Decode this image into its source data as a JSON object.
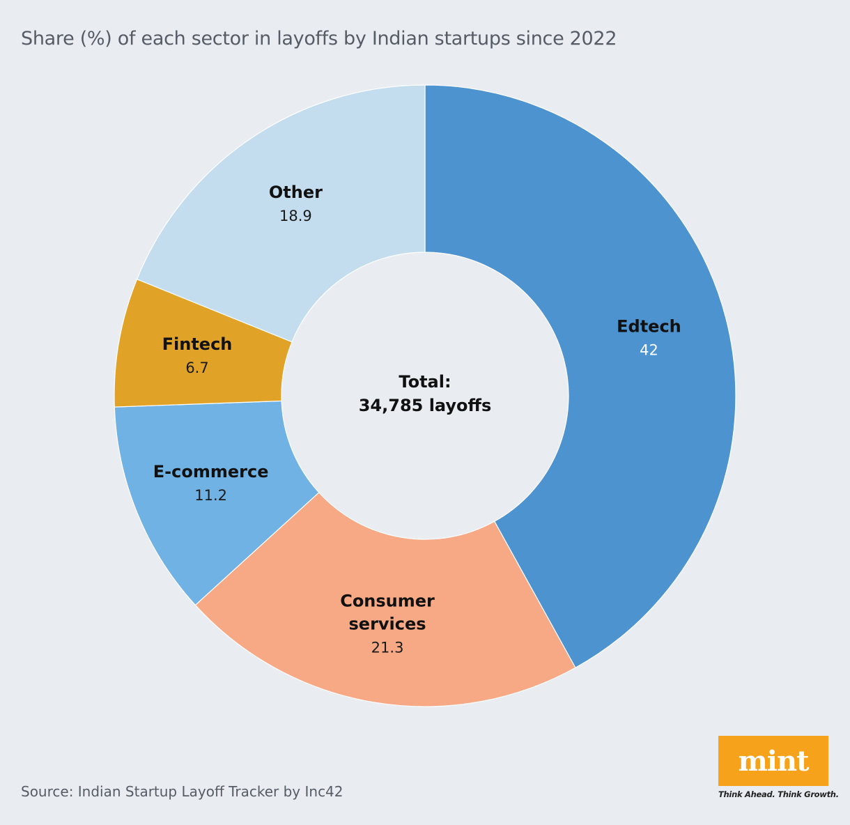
{
  "title": "Share (%) of each sector in layoffs by Indian startups since 2022",
  "source": "Source: Indian Startup Layoff Tracker by Inc42",
  "logo": {
    "word": "mint",
    "tagline": "Think Ahead. Think Growth."
  },
  "chart_data": {
    "type": "pie",
    "style": "donut",
    "title": "Share (%) of each sector in layoffs by Indian startups since 2022",
    "center_label": {
      "line1": "Total:",
      "line2": "34,785 layoffs"
    },
    "slices": [
      {
        "label": [
          "Edtech"
        ],
        "value": 42,
        "value_text": "42",
        "color": "#4d93d0",
        "value_light": true
      },
      {
        "label": [
          "Consumer",
          "services"
        ],
        "value": 21.3,
        "value_text": "21.3",
        "color": "#f7a985",
        "value_light": false
      },
      {
        "label": [
          "E-commerce"
        ],
        "value": 11.2,
        "value_text": "11.2",
        "color": "#70b2e3",
        "value_light": false
      },
      {
        "label": [
          "Fintech"
        ],
        "value": 6.7,
        "value_text": "6.7",
        "color": "#e0a327",
        "value_light": false
      },
      {
        "label": [
          "Other"
        ],
        "value": 18.9,
        "value_text": "18.9",
        "color": "#c3ddef",
        "value_light": false
      }
    ],
    "start_angle_deg": 0,
    "direction": "clockwise"
  }
}
